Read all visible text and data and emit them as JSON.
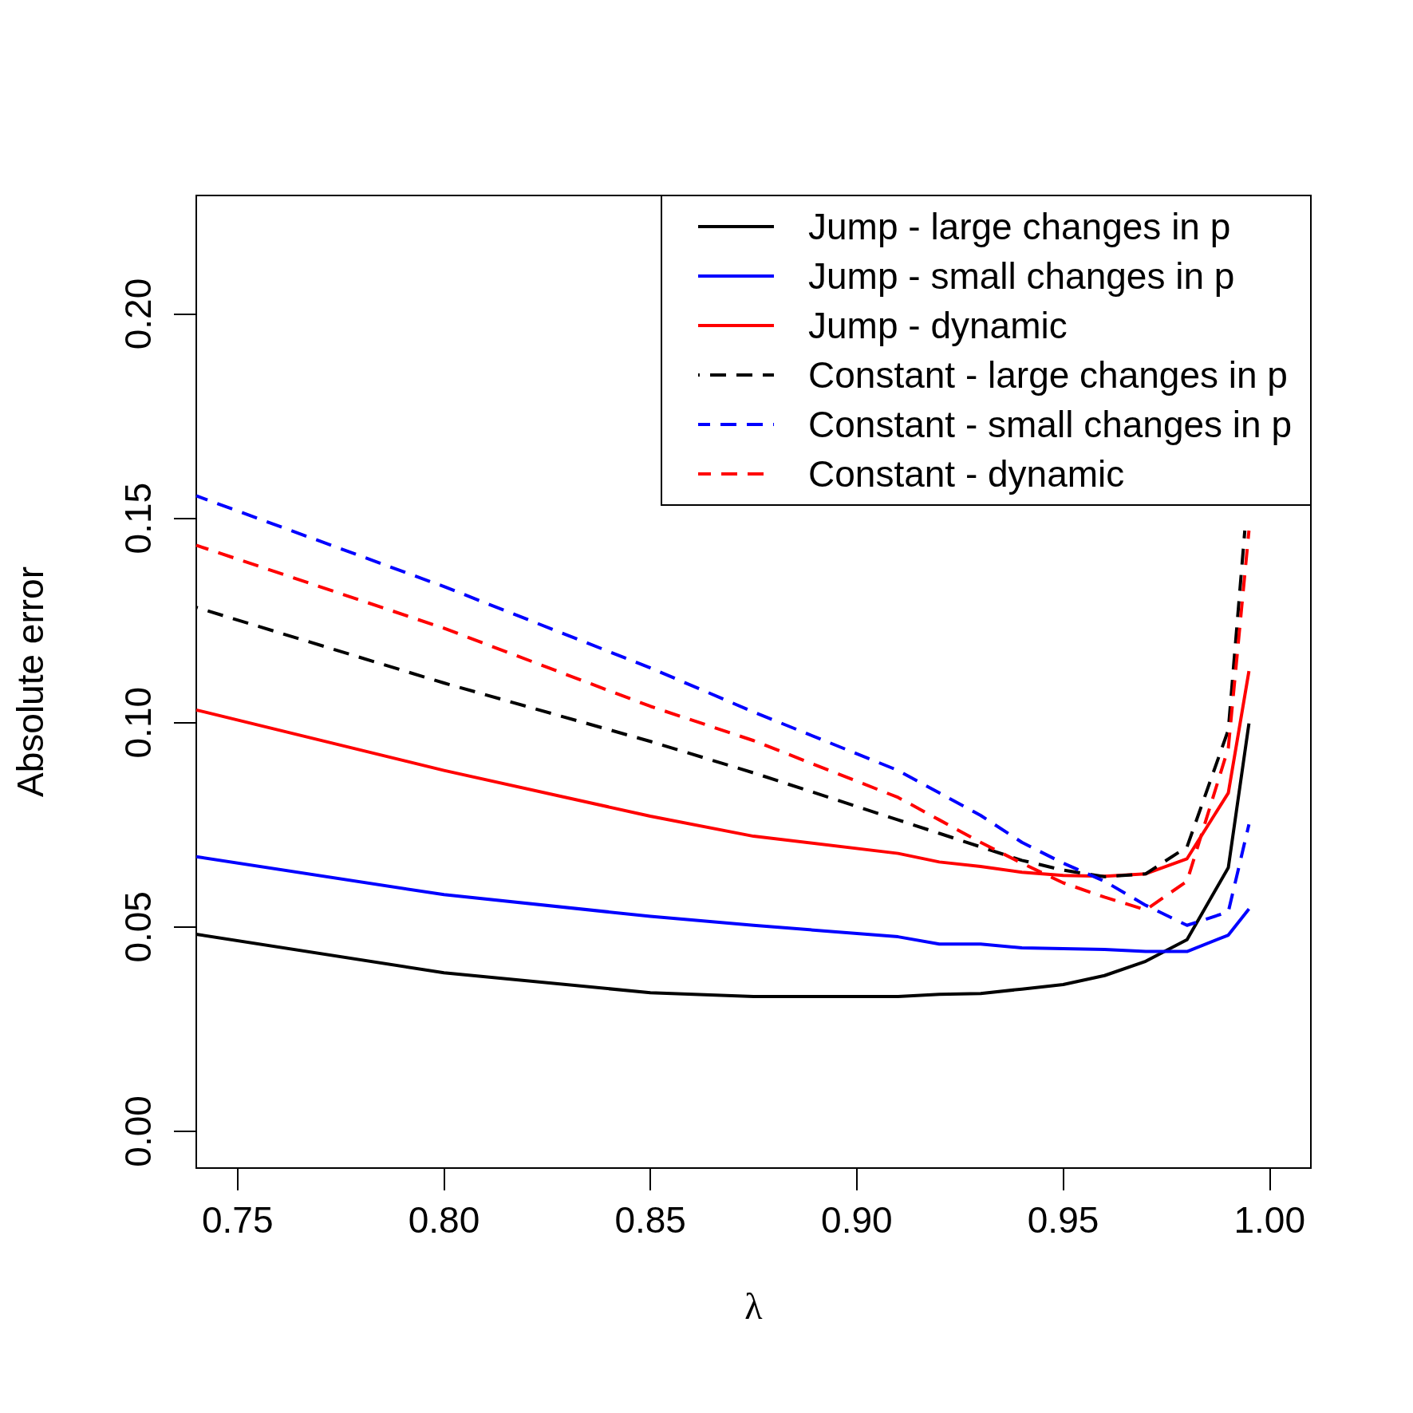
{
  "chart_data": {
    "type": "line",
    "xlabel": "λ",
    "ylabel": "Absolute error",
    "x": [
      0.74,
      0.8,
      0.85,
      0.875,
      0.91,
      0.92,
      0.93,
      0.94,
      0.95,
      0.96,
      0.97,
      0.98,
      0.99,
      0.995
    ],
    "series": [
      {
        "name": "Jump - large changes in p",
        "color": "#000000",
        "line_style": "solid",
        "values": [
          0.0482,
          0.0388,
          0.0339,
          0.033,
          0.033,
          0.0335,
          0.0337,
          0.0348,
          0.0359,
          0.0381,
          0.0416,
          0.0469,
          0.0645,
          0.0998
        ]
      },
      {
        "name": "Jump - small changes in p",
        "color": "#0000ff",
        "line_style": "solid",
        "values": [
          0.0672,
          0.0579,
          0.0526,
          0.0504,
          0.0476,
          0.0458,
          0.0458,
          0.0449,
          0.0447,
          0.0445,
          0.044,
          0.044,
          0.048,
          0.0544
        ]
      },
      {
        "name": "Jump - dynamic",
        "color": "#ff0000",
        "line_style": "solid",
        "values": [
          0.1031,
          0.0883,
          0.0771,
          0.0722,
          0.068,
          0.0659,
          0.0648,
          0.0634,
          0.0626,
          0.0624,
          0.063,
          0.0667,
          0.0828,
          0.1126
        ]
      },
      {
        "name": "Constant - large changes in p",
        "color": "#000000",
        "line_style": "dashed",
        "x": [
          0.74,
          0.8,
          0.85,
          0.875,
          0.91,
          0.92,
          0.93,
          0.94,
          0.95,
          0.96,
          0.97,
          0.98,
          0.99,
          0.994
        ],
        "values": [
          0.1282,
          0.1097,
          0.0954,
          0.0877,
          0.0762,
          0.0729,
          0.0696,
          0.0663,
          0.0639,
          0.0623,
          0.063,
          0.0696,
          0.0982,
          0.147
        ]
      },
      {
        "name": "Constant - small changes in p",
        "color": "#0000ff",
        "line_style": "dashed",
        "values": [
          0.1555,
          0.1333,
          0.1134,
          0.1026,
          0.0883,
          0.0828,
          0.0773,
          0.0707,
          0.0656,
          0.0612,
          0.0553,
          0.0504,
          0.0537,
          0.0751
        ]
      },
      {
        "name": "Constant - dynamic",
        "color": "#ff0000",
        "line_style": "dashed",
        "values": [
          0.1434,
          0.1231,
          0.104,
          0.0956,
          0.0817,
          0.0762,
          0.0707,
          0.0656,
          0.0608,
          0.0573,
          0.0542,
          0.0612,
          0.0938,
          0.147
        ]
      }
    ],
    "xlim": [
      0.74,
      1.01
    ],
    "xticks": [
      {
        "value": 0.75,
        "label": "0.75"
      },
      {
        "value": 0.8,
        "label": "0.80"
      },
      {
        "value": 0.85,
        "label": "0.85"
      },
      {
        "value": 0.9,
        "label": "0.90"
      },
      {
        "value": 0.95,
        "label": "0.95"
      },
      {
        "value": 1.0,
        "label": "1.00"
      }
    ],
    "ylim": [
      -0.009,
      0.229
    ],
    "yticks": [
      {
        "value": 0,
        "label": "0.00"
      },
      {
        "value": 0.05,
        "label": "0.05"
      },
      {
        "value": 0.1,
        "label": "0.10"
      },
      {
        "value": 0.15,
        "label": "0.15"
      },
      {
        "value": 0.2,
        "label": "0.20"
      }
    ],
    "legend": "top right",
    "grid": false,
    "marker": "none"
  }
}
